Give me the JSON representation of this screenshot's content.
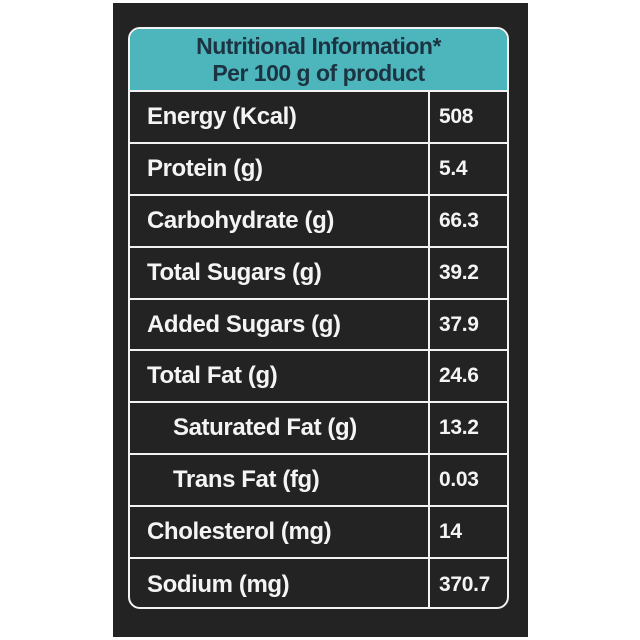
{
  "header": {
    "title": "Nutritional  Information*",
    "subtitle": "Per 100 g of product"
  },
  "table": {
    "rows": [
      [
        "Energy (Kcal)",
        "508"
      ],
      [
        "Protein (g)",
        "5.4"
      ],
      [
        "Carbohydrate (g)",
        "66.3"
      ],
      [
        "Total Sugars (g)",
        "39.2"
      ],
      [
        "Added Sugars (g)",
        "37.9"
      ],
      [
        "Total Fat (g)",
        "24.6"
      ],
      [
        "Saturated Fat (g)",
        "13.2"
      ],
      [
        "Trans Fat (fg)",
        "0.03"
      ],
      [
        "Cholesterol (mg)",
        "14"
      ],
      [
        "Sodium (mg)",
        "370.7"
      ]
    ]
  }
}
